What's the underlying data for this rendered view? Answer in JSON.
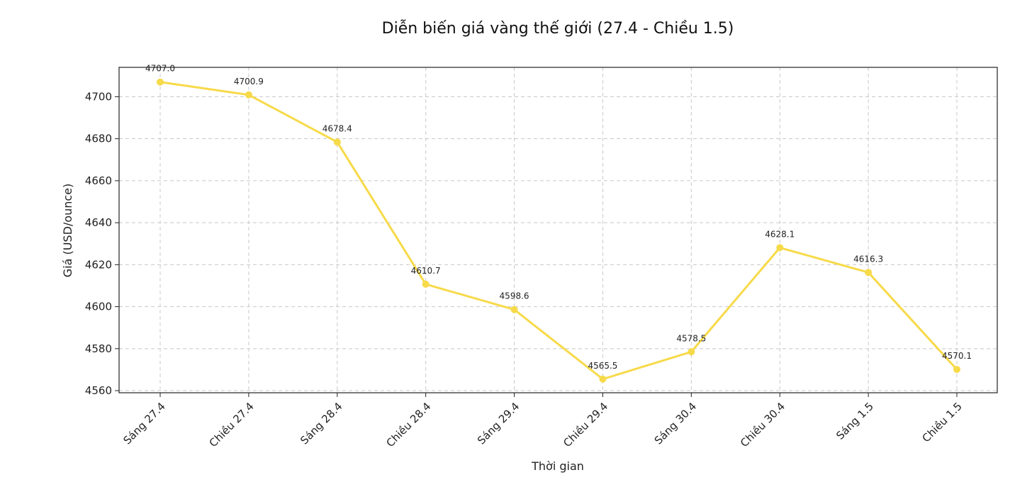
{
  "chart_data": {
    "type": "line",
    "title": "Diễn biến giá vàng thế giới (27.4 - Chiều 1.5)",
    "xlabel": "Thời gian",
    "ylabel": "Giá (USD/ounce)",
    "categories": [
      "Sáng 27.4",
      "Chiều 27.4",
      "Sáng 28.4",
      "Chiều 28.4",
      "Sáng 29.4",
      "Chiều 29.4",
      "Sáng 30.4",
      "Chiều 30.4",
      "Sáng 1.5",
      "Chiều 1.5"
    ],
    "values": [
      4707.0,
      4700.9,
      4678.4,
      4610.7,
      4598.6,
      4565.5,
      4578.5,
      4628.1,
      4616.3,
      4570.1
    ],
    "data_labels": [
      "4707.0",
      "4700.9",
      "4678.4",
      "4610.7",
      "4598.6",
      "4565.5",
      "4578.5",
      "4628.1",
      "4616.3",
      "4570.1"
    ],
    "yticks": [
      4560,
      4580,
      4600,
      4620,
      4640,
      4660,
      4680,
      4700
    ],
    "ylim": [
      4559,
      4714
    ],
    "grid": true,
    "line_color": "#F7DA4A",
    "marker_color": "#F7DA4A"
  }
}
